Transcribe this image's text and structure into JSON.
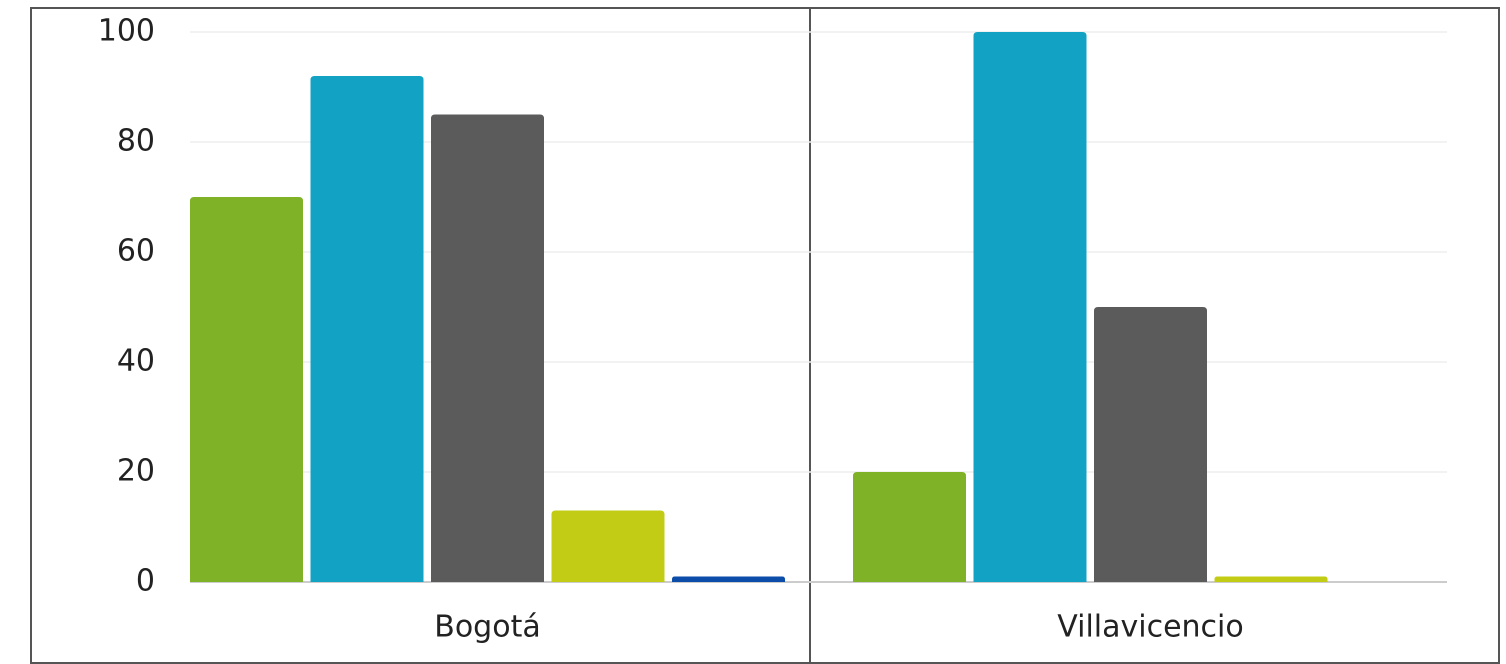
{
  "chart_data": {
    "type": "bar",
    "categories": [
      "Bogotá",
      "Villavicencio"
    ],
    "series": [
      {
        "color": "#7fb227",
        "values": [
          70,
          20
        ]
      },
      {
        "color": "#12a2c4",
        "values": [
          92,
          100
        ]
      },
      {
        "color": "#5b5b5b",
        "values": [
          85,
          50
        ]
      },
      {
        "color": "#c2cc14",
        "values": [
          13,
          1
        ]
      },
      {
        "color": "#0b4da8",
        "values": [
          1,
          0
        ]
      }
    ],
    "ylim": [
      0,
      100
    ],
    "yticks": [
      0,
      20,
      40,
      60,
      80,
      100
    ],
    "grid": true
  }
}
